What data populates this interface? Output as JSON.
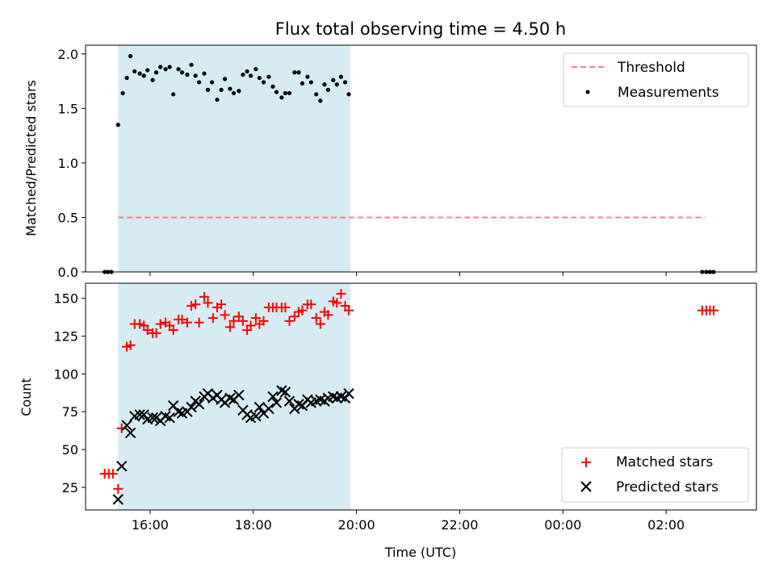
{
  "chart_data": {
    "title": "Flux total observing time = 4.50 h",
    "xlabel": "Time (UTC)",
    "x_units": "hours since 00:00 on first day (values >24 wrap past midnight)",
    "xlim": [
      14.75,
      27.75
    ],
    "xticks": [
      16,
      18,
      20,
      22,
      24,
      26
    ],
    "xtick_labels": [
      "16:00",
      "18:00",
      "20:00",
      "22:00",
      "00:00",
      "02:00"
    ],
    "observing_window": [
      15.38,
      19.88
    ],
    "window_color": "#add8e6",
    "panels": [
      {
        "type": "scatter",
        "ylabel": "Matched/Predicted stars",
        "ylim": [
          0.0,
          2.08
        ],
        "yticks": [
          0.0,
          0.5,
          1.0,
          1.5,
          2.0
        ],
        "ytick_labels": [
          "0.0",
          "0.5",
          "1.0",
          "1.5",
          "2.0"
        ],
        "legend_position": "top-right",
        "threshold": {
          "name": "Threshold",
          "value": 0.5,
          "x_range": [
            15.38,
            26.75
          ],
          "color": "#ff7f7f"
        },
        "series": [
          {
            "name": "Measurements",
            "marker": "dot",
            "color": "#000000",
            "points": [
              [
                15.12,
                0.0
              ],
              [
                15.18,
                0.0
              ],
              [
                15.25,
                0.0
              ],
              [
                15.38,
                1.35
              ],
              [
                15.47,
                1.64
              ],
              [
                15.55,
                1.78
              ],
              [
                15.62,
                1.98
              ],
              [
                15.7,
                1.84
              ],
              [
                15.8,
                1.82
              ],
              [
                15.88,
                1.8
              ],
              [
                15.95,
                1.85
              ],
              [
                16.05,
                1.76
              ],
              [
                16.12,
                1.83
              ],
              [
                16.2,
                1.88
              ],
              [
                16.3,
                1.86
              ],
              [
                16.38,
                1.88
              ],
              [
                16.45,
                1.63
              ],
              [
                16.55,
                1.86
              ],
              [
                16.62,
                1.83
              ],
              [
                16.72,
                1.81
              ],
              [
                16.8,
                1.9
              ],
              [
                16.88,
                1.8
              ],
              [
                16.95,
                1.74
              ],
              [
                17.05,
                1.82
              ],
              [
                17.12,
                1.67
              ],
              [
                17.2,
                1.74
              ],
              [
                17.3,
                1.58
              ],
              [
                17.38,
                1.67
              ],
              [
                17.45,
                1.77
              ],
              [
                17.55,
                1.68
              ],
              [
                17.62,
                1.64
              ],
              [
                17.72,
                1.66
              ],
              [
                17.8,
                1.81
              ],
              [
                17.88,
                1.84
              ],
              [
                17.95,
                1.8
              ],
              [
                18.05,
                1.86
              ],
              [
                18.12,
                1.78
              ],
              [
                18.2,
                1.74
              ],
              [
                18.3,
                1.79
              ],
              [
                18.38,
                1.7
              ],
              [
                18.45,
                1.65
              ],
              [
                18.55,
                1.6
              ],
              [
                18.62,
                1.64
              ],
              [
                18.7,
                1.64
              ],
              [
                18.8,
                1.83
              ],
              [
                18.88,
                1.83
              ],
              [
                18.95,
                1.73
              ],
              [
                19.05,
                1.79
              ],
              [
                19.12,
                1.74
              ],
              [
                19.22,
                1.63
              ],
              [
                19.3,
                1.57
              ],
              [
                19.38,
                1.72
              ],
              [
                19.45,
                1.67
              ],
              [
                19.55,
                1.76
              ],
              [
                19.62,
                1.72
              ],
              [
                19.7,
                1.79
              ],
              [
                19.78,
                1.74
              ],
              [
                19.85,
                1.63
              ],
              [
                26.7,
                0.0
              ],
              [
                26.78,
                0.0
              ],
              [
                26.85,
                0.0
              ],
              [
                26.92,
                0.0
              ]
            ]
          }
        ]
      },
      {
        "type": "scatter",
        "ylabel": "Count",
        "ylim": [
          10,
          160
        ],
        "yticks": [
          25,
          50,
          75,
          100,
          125,
          150
        ],
        "ytick_labels": [
          "25",
          "50",
          "75",
          "100",
          "125",
          "150"
        ],
        "legend_position": "bottom-right",
        "series": [
          {
            "name": "Matched stars",
            "marker": "plus",
            "color": "#ff0000",
            "points": [
              [
                15.12,
                34
              ],
              [
                15.2,
                34
              ],
              [
                15.28,
                34
              ],
              [
                15.38,
                24
              ],
              [
                15.45,
                64
              ],
              [
                15.55,
                118
              ],
              [
                15.62,
                119
              ],
              [
                15.7,
                133
              ],
              [
                15.8,
                133
              ],
              [
                15.88,
                132
              ],
              [
                15.95,
                129
              ],
              [
                16.05,
                127
              ],
              [
                16.12,
                127
              ],
              [
                16.2,
                133
              ],
              [
                16.3,
                134
              ],
              [
                16.38,
                132
              ],
              [
                16.45,
                129
              ],
              [
                16.55,
                136
              ],
              [
                16.62,
                136
              ],
              [
                16.72,
                134
              ],
              [
                16.8,
                145
              ],
              [
                16.88,
                146
              ],
              [
                16.95,
                134
              ],
              [
                17.05,
                151
              ],
              [
                17.12,
                147
              ],
              [
                17.22,
                137
              ],
              [
                17.3,
                144
              ],
              [
                17.38,
                146
              ],
              [
                17.45,
                139
              ],
              [
                17.55,
                131
              ],
              [
                17.62,
                135
              ],
              [
                17.72,
                138
              ],
              [
                17.8,
                135
              ],
              [
                17.88,
                129
              ],
              [
                17.95,
                132
              ],
              [
                18.05,
                137
              ],
              [
                18.12,
                133
              ],
              [
                18.2,
                135
              ],
              [
                18.3,
                144
              ],
              [
                18.38,
                144
              ],
              [
                18.45,
                144
              ],
              [
                18.55,
                144
              ],
              [
                18.62,
                144
              ],
              [
                18.7,
                135
              ],
              [
                18.8,
                138
              ],
              [
                18.88,
                141
              ],
              [
                18.95,
                142
              ],
              [
                19.05,
                146
              ],
              [
                19.12,
                146
              ],
              [
                19.22,
                137
              ],
              [
                19.3,
                133
              ],
              [
                19.38,
                141
              ],
              [
                19.45,
                139
              ],
              [
                19.55,
                148
              ],
              [
                19.62,
                147
              ],
              [
                19.7,
                153
              ],
              [
                19.78,
                145
              ],
              [
                19.85,
                142
              ],
              [
                26.7,
                142
              ],
              [
                26.78,
                142
              ],
              [
                26.85,
                142
              ],
              [
                26.92,
                142
              ]
            ]
          },
          {
            "name": "Predicted stars",
            "marker": "x",
            "color": "#000000",
            "points": [
              [
                15.38,
                17
              ],
              [
                15.45,
                39
              ],
              [
                15.55,
                66
              ],
              [
                15.62,
                61
              ],
              [
                15.7,
                72
              ],
              [
                15.8,
                73
              ],
              [
                15.88,
                73
              ],
              [
                15.95,
                70
              ],
              [
                16.05,
                71
              ],
              [
                16.12,
                71
              ],
              [
                16.2,
                69
              ],
              [
                16.3,
                72
              ],
              [
                16.38,
                71
              ],
              [
                16.45,
                79
              ],
              [
                16.55,
                75
              ],
              [
                16.62,
                74
              ],
              [
                16.72,
                75
              ],
              [
                16.8,
                78
              ],
              [
                16.88,
                82
              ],
              [
                16.95,
                80
              ],
              [
                17.05,
                85
              ],
              [
                17.12,
                87
              ],
              [
                17.22,
                84
              ],
              [
                17.3,
                86
              ],
              [
                17.38,
                83
              ],
              [
                17.45,
                81
              ],
              [
                17.55,
                84
              ],
              [
                17.62,
                83
              ],
              [
                17.72,
                86
              ],
              [
                17.8,
                76
              ],
              [
                17.88,
                73
              ],
              [
                17.95,
                71
              ],
              [
                18.05,
                72
              ],
              [
                18.12,
                78
              ],
              [
                18.2,
                74
              ],
              [
                18.3,
                77
              ],
              [
                18.38,
                85
              ],
              [
                18.45,
                81
              ],
              [
                18.55,
                89
              ],
              [
                18.62,
                88
              ],
              [
                18.7,
                82
              ],
              [
                18.8,
                77
              ],
              [
                18.88,
                80
              ],
              [
                18.95,
                79
              ],
              [
                19.05,
                83
              ],
              [
                19.12,
                81
              ],
              [
                19.22,
                82
              ],
              [
                19.3,
                83
              ],
              [
                19.38,
                82
              ],
              [
                19.45,
                84
              ],
              [
                19.55,
                85
              ],
              [
                19.62,
                84
              ],
              [
                19.7,
                85
              ],
              [
                19.78,
                84
              ],
              [
                19.85,
                87
              ]
            ]
          }
        ]
      }
    ]
  }
}
